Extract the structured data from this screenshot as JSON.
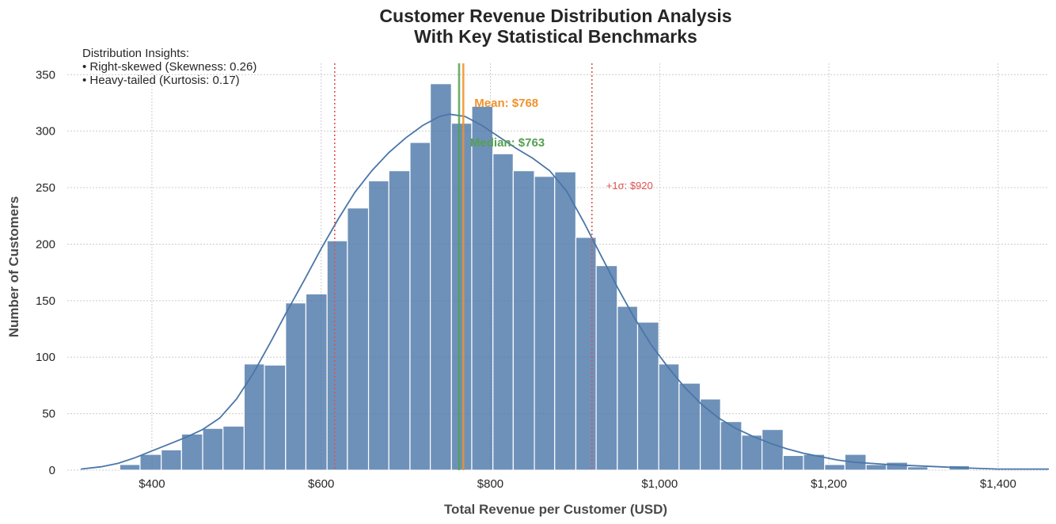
{
  "chart_data": {
    "type": "bar",
    "subtype": "histogram",
    "title_line1": "Customer Revenue Distribution Analysis",
    "title_line2": "With Key Statistical Benchmarks",
    "xlabel": "Total Revenue per Customer (USD)",
    "ylabel": "Number of Customers",
    "xlim": [
      300,
      1460
    ],
    "ylim": [
      0,
      360
    ],
    "x_ticks": [
      {
        "value": 400,
        "label": "$400"
      },
      {
        "value": 600,
        "label": "$600"
      },
      {
        "value": 800,
        "label": "$800"
      },
      {
        "value": 1000,
        "label": "$1,000"
      },
      {
        "value": 1200,
        "label": "$1,200"
      },
      {
        "value": 1400,
        "label": "$1,400"
      }
    ],
    "y_ticks": [
      {
        "value": 0,
        "label": "0"
      },
      {
        "value": 50,
        "label": "50"
      },
      {
        "value": 100,
        "label": "100"
      },
      {
        "value": 150,
        "label": "150"
      },
      {
        "value": 200,
        "label": "200"
      },
      {
        "value": 250,
        "label": "250"
      },
      {
        "value": 300,
        "label": "300"
      },
      {
        "value": 350,
        "label": "350"
      }
    ],
    "grid": true,
    "bar_color": "#4a76a8",
    "bins": [
      {
        "x0": 362,
        "x1": 386,
        "count": 5
      },
      {
        "x0": 386,
        "x1": 411,
        "count": 14
      },
      {
        "x0": 411,
        "x1": 435,
        "count": 18
      },
      {
        "x0": 435,
        "x1": 460,
        "count": 32
      },
      {
        "x0": 460,
        "x1": 484,
        "count": 37
      },
      {
        "x0": 484,
        "x1": 509,
        "count": 39
      },
      {
        "x0": 509,
        "x1": 533,
        "count": 94
      },
      {
        "x0": 533,
        "x1": 558,
        "count": 93
      },
      {
        "x0": 558,
        "x1": 582,
        "count": 148
      },
      {
        "x0": 582,
        "x1": 607,
        "count": 156
      },
      {
        "x0": 607,
        "x1": 631,
        "count": 203
      },
      {
        "x0": 631,
        "x1": 656,
        "count": 232
      },
      {
        "x0": 656,
        "x1": 680,
        "count": 256
      },
      {
        "x0": 680,
        "x1": 705,
        "count": 265
      },
      {
        "x0": 705,
        "x1": 729,
        "count": 290
      },
      {
        "x0": 729,
        "x1": 754,
        "count": 342
      },
      {
        "x0": 754,
        "x1": 778,
        "count": 307
      },
      {
        "x0": 778,
        "x1": 803,
        "count": 322
      },
      {
        "x0": 803,
        "x1": 827,
        "count": 280
      },
      {
        "x0": 827,
        "x1": 852,
        "count": 265
      },
      {
        "x0": 852,
        "x1": 876,
        "count": 260
      },
      {
        "x0": 876,
        "x1": 901,
        "count": 264
      },
      {
        "x0": 901,
        "x1": 925,
        "count": 206
      },
      {
        "x0": 925,
        "x1": 950,
        "count": 181
      },
      {
        "x0": 950,
        "x1": 974,
        "count": 145
      },
      {
        "x0": 974,
        "x1": 999,
        "count": 131
      },
      {
        "x0": 999,
        "x1": 1023,
        "count": 94
      },
      {
        "x0": 1023,
        "x1": 1048,
        "count": 77
      },
      {
        "x0": 1048,
        "x1": 1072,
        "count": 63
      },
      {
        "x0": 1072,
        "x1": 1097,
        "count": 43
      },
      {
        "x0": 1097,
        "x1": 1121,
        "count": 31
      },
      {
        "x0": 1121,
        "x1": 1146,
        "count": 36
      },
      {
        "x0": 1146,
        "x1": 1170,
        "count": 13
      },
      {
        "x0": 1170,
        "x1": 1195,
        "count": 14
      },
      {
        "x0": 1195,
        "x1": 1219,
        "count": 5
      },
      {
        "x0": 1219,
        "x1": 1244,
        "count": 14
      },
      {
        "x0": 1244,
        "x1": 1268,
        "count": 5
      },
      {
        "x0": 1268,
        "x1": 1293,
        "count": 7
      },
      {
        "x0": 1293,
        "x1": 1317,
        "count": 3
      },
      {
        "x0": 1342,
        "x1": 1366,
        "count": 4
      }
    ],
    "kde": [
      [
        316,
        1
      ],
      [
        340,
        3
      ],
      [
        360,
        6
      ],
      [
        380,
        11
      ],
      [
        400,
        17
      ],
      [
        420,
        23
      ],
      [
        440,
        29
      ],
      [
        460,
        36
      ],
      [
        480,
        46
      ],
      [
        500,
        63
      ],
      [
        520,
        86
      ],
      [
        540,
        113
      ],
      [
        560,
        141
      ],
      [
        580,
        168
      ],
      [
        600,
        196
      ],
      [
        620,
        222
      ],
      [
        640,
        246
      ],
      [
        660,
        265
      ],
      [
        680,
        281
      ],
      [
        700,
        294
      ],
      [
        720,
        305
      ],
      [
        740,
        313
      ],
      [
        752,
        315
      ],
      [
        770,
        313
      ],
      [
        790,
        305
      ],
      [
        810,
        295
      ],
      [
        830,
        285
      ],
      [
        850,
        276
      ],
      [
        870,
        265
      ],
      [
        890,
        247
      ],
      [
        910,
        220
      ],
      [
        930,
        191
      ],
      [
        950,
        162
      ],
      [
        970,
        135
      ],
      [
        990,
        111
      ],
      [
        1010,
        91
      ],
      [
        1030,
        73
      ],
      [
        1050,
        58
      ],
      [
        1070,
        46
      ],
      [
        1090,
        37
      ],
      [
        1110,
        30
      ],
      [
        1130,
        24
      ],
      [
        1150,
        19
      ],
      [
        1170,
        15
      ],
      [
        1190,
        12
      ],
      [
        1210,
        9
      ],
      [
        1230,
        7
      ],
      [
        1250,
        6
      ],
      [
        1270,
        5
      ],
      [
        1300,
        4
      ],
      [
        1330,
        3
      ],
      [
        1360,
        2
      ],
      [
        1400,
        1
      ],
      [
        1460,
        1
      ]
    ],
    "kde_color": "#4a76a8",
    "reference_lines": [
      {
        "value": 768,
        "label": "Mean: $768",
        "color": "#f0922b",
        "style": "solid",
        "label_y": 325
      },
      {
        "value": 763,
        "label": "Median: $763",
        "color": "#55a050",
        "style": "solid",
        "label_y": 290
      },
      {
        "value": 920,
        "label": "+1σ: $920",
        "color": "#e05252",
        "style": "dotted",
        "label_y": 252
      },
      {
        "value": 616,
        "label": "",
        "color": "#e05252",
        "style": "dotted",
        "label_y": null
      }
    ],
    "annotation": {
      "lines": [
        "Distribution Insights:",
        "• Right-skewed (Skewness: 0.26)",
        "• Heavy-tailed (Kurtosis: 0.17)"
      ],
      "placement": "top-left"
    }
  }
}
